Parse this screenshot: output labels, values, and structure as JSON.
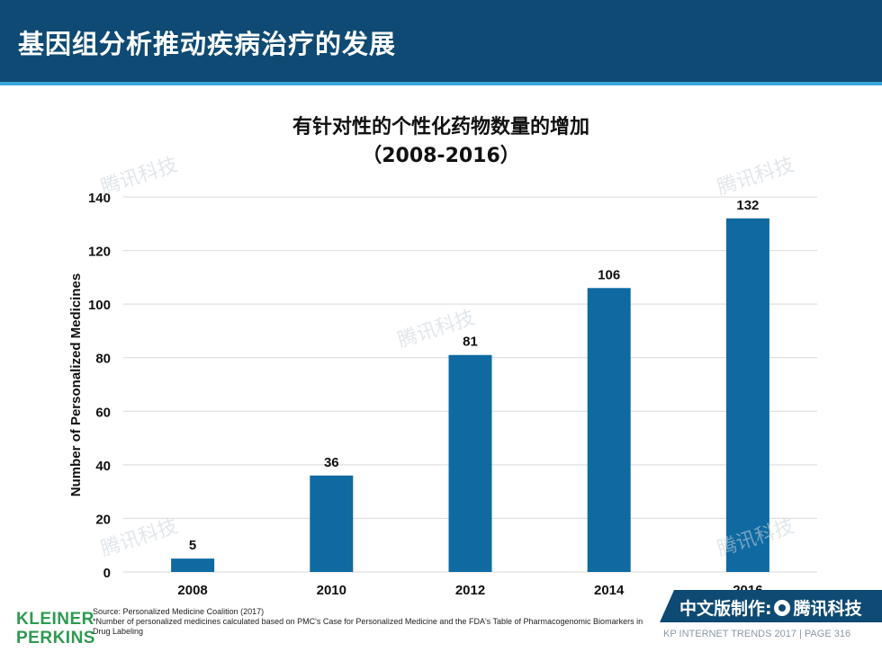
{
  "header": {
    "title": "基因组分析推动疾病治疗的发展"
  },
  "chart_data": {
    "type": "bar",
    "title": "有针对性的个性化药物数量的增加",
    "subtitle": "（2008-2016）",
    "ylabel": "Number of Personalized Medicines",
    "xlabel": "",
    "categories": [
      "2008",
      "2010",
      "2012",
      "2014",
      "2016"
    ],
    "values": [
      5,
      36,
      81,
      106,
      132
    ],
    "ylim": [
      0,
      140
    ],
    "yticks": [
      0,
      20,
      40,
      60,
      80,
      100,
      120,
      140
    ],
    "grid": true,
    "bar_color": "#0f6aa2"
  },
  "watermark": {
    "text": "腾讯科技"
  },
  "footer": {
    "source": "Source: Personalized Medicine Coalition (2017)",
    "note": "*Number of personalized medicines calculated based on PMC's Case for Personalized Medicine and the FDA's Table of Pharmacogenomic Biomarkers in Drug Labeling",
    "logo_line1": "KLEINER",
    "logo_line2": "PERKINS",
    "badge_prefix": "中文版制作:",
    "badge_brand": "腾讯科技",
    "page_label": "KP INTERNET TRENDS 2017   |   PAGE 316"
  },
  "colors": {
    "header": "#0e4a73",
    "accent": "#3aa6db",
    "logo": "#2e9a52"
  }
}
